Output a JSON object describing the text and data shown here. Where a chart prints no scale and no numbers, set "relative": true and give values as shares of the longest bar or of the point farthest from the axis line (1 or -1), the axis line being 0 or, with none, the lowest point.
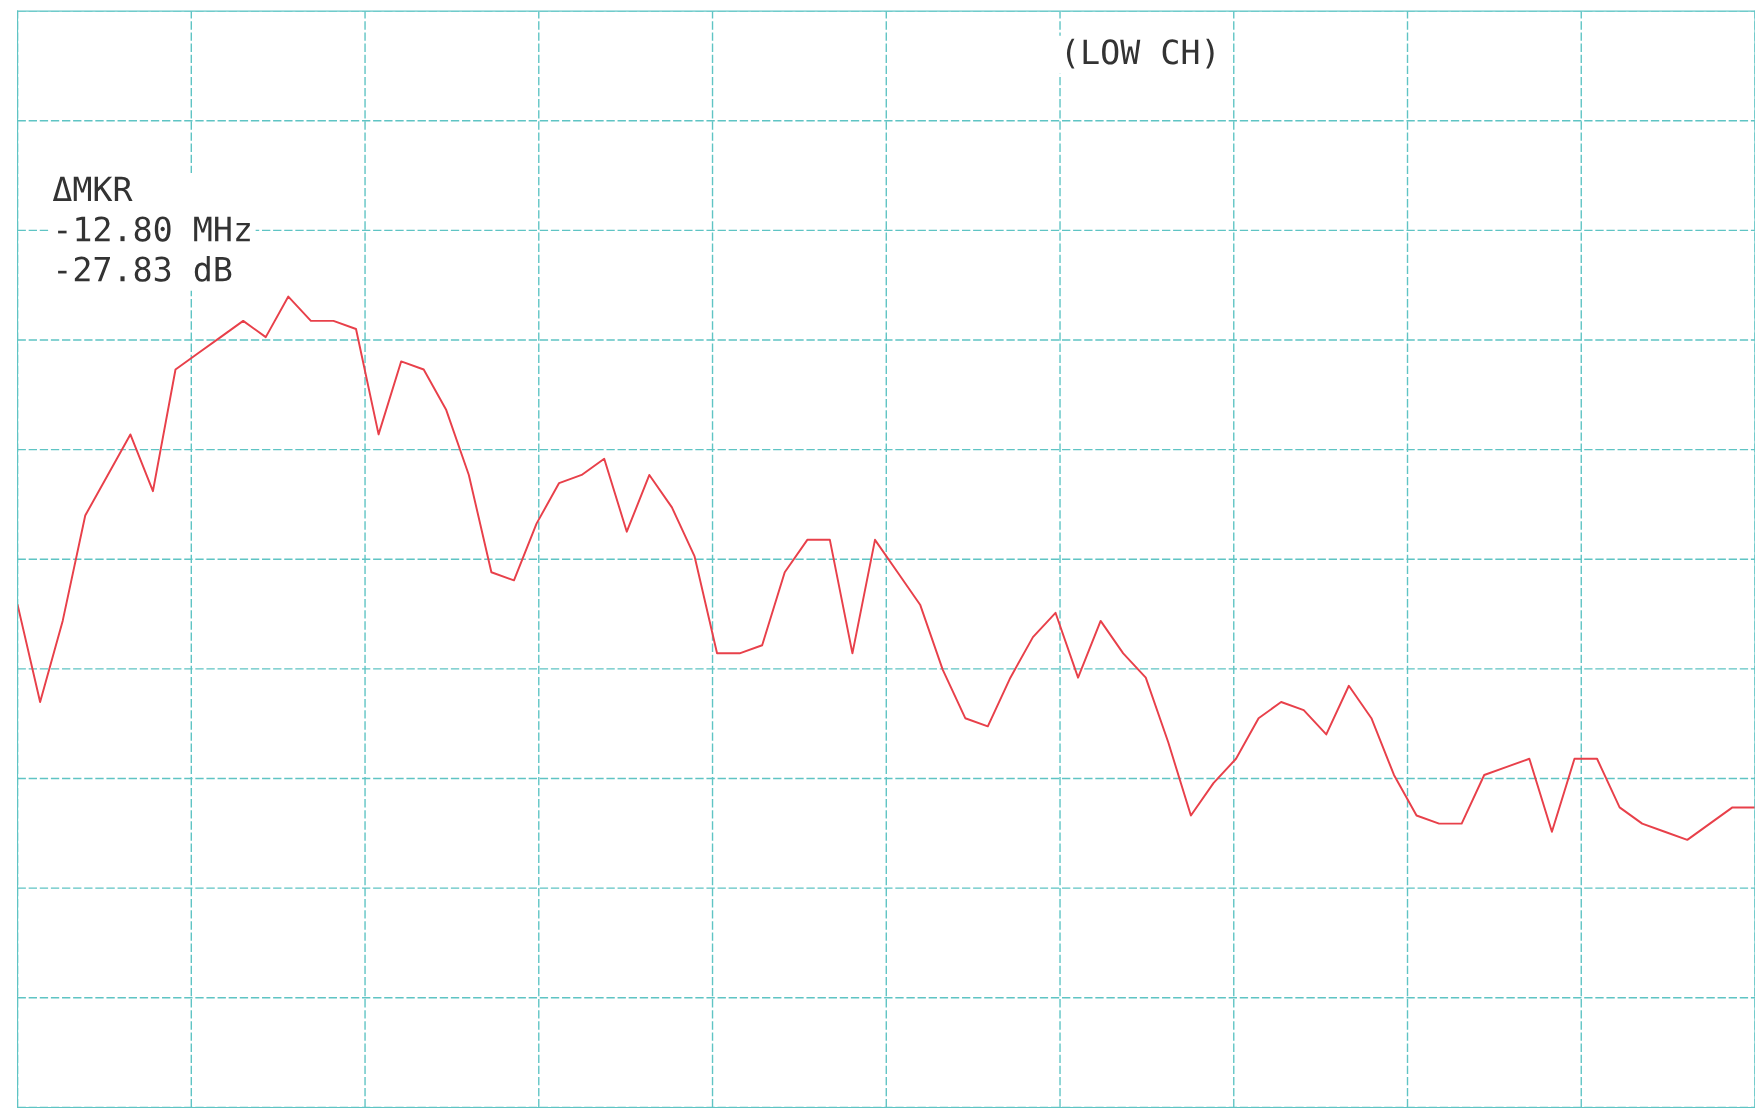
{
  "chart_data": {
    "type": "line",
    "relative": true,
    "grid": true,
    "categories": [
      null,
      null,
      null,
      null,
      null,
      null,
      null,
      null,
      null,
      null,
      null,
      null,
      null,
      null,
      null,
      null,
      null,
      null,
      null,
      null,
      null,
      null,
      null,
      null,
      null,
      null,
      null,
      null,
      null,
      null,
      null,
      null,
      null,
      null,
      null,
      null,
      null,
      null,
      null,
      null,
      null,
      null,
      null,
      null,
      null,
      null,
      null,
      null,
      null,
      null,
      null,
      null,
      null,
      null,
      null,
      null,
      null,
      null,
      null,
      null,
      null,
      null,
      null,
      null,
      null,
      null,
      null,
      null,
      null,
      null,
      null,
      null,
      null,
      null,
      null,
      null,
      null,
      null
    ],
    "series": [
      {
        "color": "#e8404a",
        "values": [
          0.62,
          0.5,
          0.6,
          0.73,
          0.78,
          0.83,
          0.76,
          0.91,
          0.93,
          0.95,
          0.97,
          0.95,
          1.0,
          0.97,
          0.97,
          0.96,
          0.83,
          0.92,
          0.91,
          0.86,
          0.78,
          0.66,
          0.65,
          0.72,
          0.77,
          0.78,
          0.8,
          0.71,
          0.78,
          0.74,
          0.68,
          0.56,
          0.56,
          0.57,
          0.66,
          0.7,
          0.7,
          0.56,
          0.7,
          0.66,
          0.62,
          0.54,
          0.48,
          0.47,
          0.53,
          0.58,
          0.61,
          0.53,
          0.6,
          0.56,
          0.53,
          0.45,
          0.36,
          0.4,
          0.43,
          0.48,
          0.5,
          0.49,
          0.46,
          0.52,
          0.48,
          0.41,
          0.36,
          0.35,
          0.35,
          0.41,
          0.42,
          0.43,
          0.34,
          0.43,
          0.43,
          0.37,
          0.35,
          0.34,
          0.33,
          0.35,
          0.37,
          0.37
        ]
      }
    ],
    "annotations": [
      "ΔMKR\n-12.80 MHz\n-27.83 dB",
      "(LOW CH)"
    ]
  }
}
